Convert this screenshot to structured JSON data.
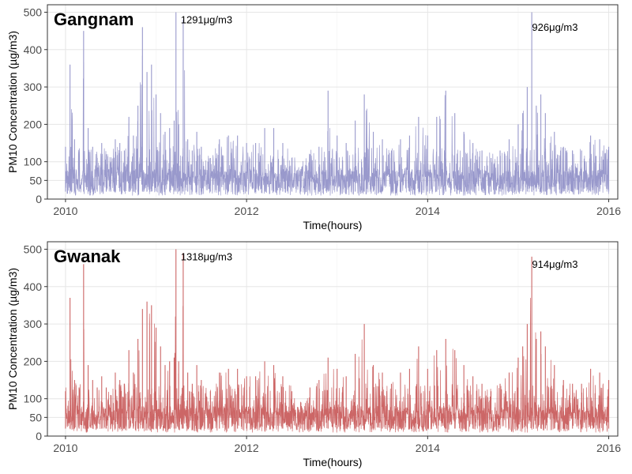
{
  "chart_data": [
    {
      "type": "line",
      "title": "Gangnam",
      "xlabel": "Time(hours)",
      "ylabel": "PM10 Concentration (µg/m3)",
      "xlim": [
        2009.8,
        2016.1
      ],
      "ylim": [
        0,
        520
      ],
      "x_ticks": [
        2010,
        2012,
        2014,
        2016
      ],
      "y_ticks": [
        0,
        50,
        100,
        200,
        300,
        400,
        500
      ],
      "grid": true,
      "color": "#9999cc",
      "annotations": [
        {
          "text": "1291μg/m3",
          "x": 2011.22,
          "y": 500
        },
        {
          "text": "926μg/m3",
          "x": 2015.1,
          "y": 480
        }
      ],
      "series": [
        {
          "x": [
            2010.0,
            2010.05,
            2010.1,
            2010.15,
            2010.2,
            2010.25,
            2010.3,
            2010.35,
            2010.4,
            2010.45,
            2010.5,
            2010.55,
            2010.6,
            2010.65,
            2010.7,
            2010.75,
            2010.8,
            2010.85,
            2010.9,
            2010.95,
            2011.0,
            2011.05,
            2011.1,
            2011.15,
            2011.2,
            2011.22,
            2011.25,
            2011.3,
            2011.35,
            2011.4,
            2011.45,
            2011.5,
            2011.6,
            2011.7,
            2011.8,
            2011.9,
            2012.0,
            2012.1,
            2012.2,
            2012.3,
            2012.4,
            2012.5,
            2012.6,
            2012.7,
            2012.8,
            2012.9,
            2013.0,
            2013.1,
            2013.2,
            2013.3,
            2013.4,
            2013.5,
            2013.6,
            2013.7,
            2013.8,
            2013.9,
            2014.0,
            2014.1,
            2014.2,
            2014.3,
            2014.4,
            2014.5,
            2014.6,
            2014.7,
            2014.8,
            2014.9,
            2015.0,
            2015.05,
            2015.1,
            2015.15,
            2015.2,
            2015.25,
            2015.3,
            2015.4,
            2015.5,
            2015.6,
            2015.7,
            2015.8,
            2015.9,
            2016.0
          ],
          "y": [
            140,
            360,
            160,
            120,
            450,
            190,
            140,
            110,
            150,
            120,
            100,
            160,
            150,
            130,
            220,
            170,
            250,
            460,
            340,
            360,
            280,
            230,
            180,
            190,
            210,
            500,
            200,
            480,
            160,
            130,
            180,
            140,
            110,
            160,
            170,
            170,
            150,
            150,
            190,
            190,
            150,
            110,
            80,
            120,
            140,
            290,
            170,
            150,
            210,
            280,
            180,
            160,
            130,
            160,
            170,
            220,
            170,
            220,
            290,
            230,
            180,
            150,
            130,
            110,
            130,
            160,
            200,
            230,
            300,
            500,
            250,
            280,
            230,
            180,
            140,
            130,
            130,
            170,
            160,
            140
          ]
        }
      ]
    },
    {
      "type": "line",
      "title": "Gwanak",
      "xlabel": "Time(hours)",
      "ylabel": "PM10 Concentration (µg/m3)",
      "xlim": [
        2009.8,
        2016.1
      ],
      "ylim": [
        0,
        520
      ],
      "x_ticks": [
        2010,
        2012,
        2014,
        2016
      ],
      "y_ticks": [
        0,
        50,
        100,
        200,
        300,
        400,
        500
      ],
      "grid": true,
      "color": "#cc6666",
      "annotations": [
        {
          "text": "1318μg/m3",
          "x": 2011.22,
          "y": 500
        },
        {
          "text": "914μg/m3",
          "x": 2015.1,
          "y": 480
        }
      ],
      "series": [
        {
          "x": [
            2010.0,
            2010.05,
            2010.1,
            2010.15,
            2010.2,
            2010.25,
            2010.3,
            2010.35,
            2010.4,
            2010.45,
            2010.5,
            2010.55,
            2010.6,
            2010.65,
            2010.7,
            2010.75,
            2010.8,
            2010.85,
            2010.9,
            2010.95,
            2011.0,
            2011.05,
            2011.1,
            2011.15,
            2011.2,
            2011.22,
            2011.25,
            2011.3,
            2011.35,
            2011.4,
            2011.45,
            2011.5,
            2011.6,
            2011.7,
            2011.8,
            2011.9,
            2012.0,
            2012.1,
            2012.2,
            2012.3,
            2012.4,
            2012.5,
            2012.6,
            2012.7,
            2012.8,
            2012.9,
            2013.0,
            2013.1,
            2013.2,
            2013.3,
            2013.4,
            2013.5,
            2013.6,
            2013.7,
            2013.8,
            2013.9,
            2014.0,
            2014.1,
            2014.2,
            2014.3,
            2014.4,
            2014.5,
            2014.6,
            2014.7,
            2014.8,
            2014.9,
            2015.0,
            2015.05,
            2015.1,
            2015.15,
            2015.2,
            2015.25,
            2015.3,
            2015.4,
            2015.5,
            2015.6,
            2015.7,
            2015.8,
            2015.9,
            2016.0
          ],
          "y": [
            120,
            370,
            150,
            130,
            460,
            190,
            150,
            130,
            160,
            130,
            110,
            170,
            150,
            140,
            230,
            170,
            260,
            340,
            360,
            350,
            290,
            240,
            190,
            200,
            210,
            500,
            200,
            490,
            170,
            140,
            190,
            150,
            120,
            170,
            180,
            180,
            160,
            160,
            200,
            190,
            160,
            120,
            90,
            130,
            150,
            210,
            180,
            160,
            220,
            300,
            190,
            170,
            140,
            170,
            180,
            240,
            180,
            230,
            260,
            230,
            190,
            160,
            140,
            120,
            140,
            170,
            210,
            240,
            300,
            480,
            260,
            280,
            240,
            190,
            150,
            140,
            140,
            180,
            170,
            150
          ]
        }
      ]
    }
  ]
}
